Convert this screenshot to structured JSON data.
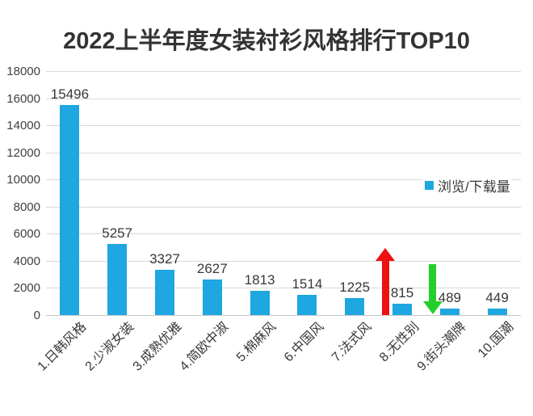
{
  "title": "2022上半年度女装衬衫风格排行TOP10",
  "legend": {
    "label": "浏览/下载量"
  },
  "colors": {
    "bar": "#1EA7E0",
    "up_arrow": "#ED1111",
    "down_arrow": "#24CE2B",
    "gridline": "#d9d9d9",
    "baseline": "#c6c6c6",
    "title_text": "#333333",
    "tick_text": "#404040",
    "label_text": "#383838"
  },
  "chart_data": {
    "type": "bar",
    "title": "2022上半年度女装衬衫风格排行TOP10",
    "categories": [
      "1.日韩风格",
      "2.少淑女装",
      "3.成熟优雅",
      "4.简欧中淑",
      "5.棉麻风",
      "6.中国风",
      "7.法式风",
      "8.无性别",
      "9.街头潮牌",
      "10.国潮"
    ],
    "values": [
      15496,
      5257,
      3327,
      2627,
      1813,
      1514,
      1225,
      815,
      489,
      449
    ],
    "series_name": "浏览/下载量",
    "xlabel": "",
    "ylabel": "",
    "ylim": [
      0,
      18000
    ],
    "yticks": [
      0,
      2000,
      4000,
      6000,
      8000,
      10000,
      12000,
      14000,
      16000,
      18000
    ],
    "grid": true,
    "legend_position": "right-middle",
    "annotations": [
      {
        "name": "up-arrow",
        "shape": "arrow-up",
        "color_key": "up_arrow",
        "category_index": 7,
        "meaning": "rising trend marker beside 8.无性别"
      },
      {
        "name": "down-arrow",
        "shape": "arrow-down",
        "color_key": "down_arrow",
        "category_index": 8,
        "meaning": "falling trend marker beside 9.街头潮牌"
      }
    ]
  }
}
